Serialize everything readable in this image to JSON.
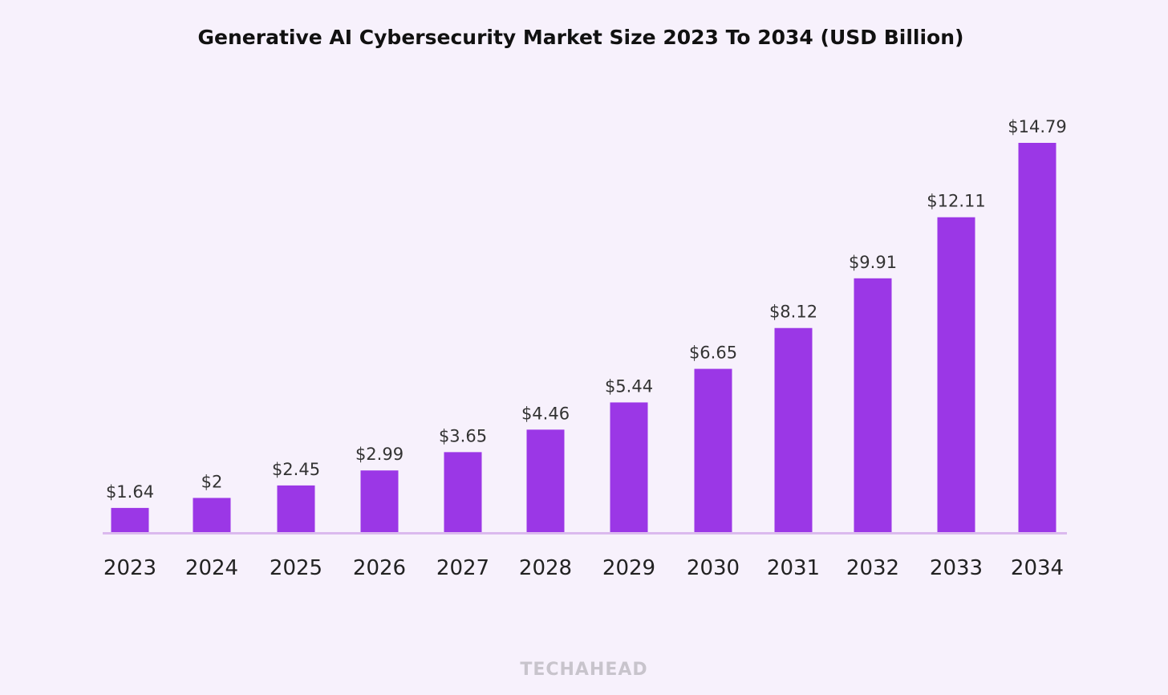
{
  "chart_data": {
    "type": "bar",
    "title": "Generative AI Cybersecurity Market Size 2023 To 2034 (USD Billion)",
    "categories": [
      "2023",
      "2024",
      "2025",
      "2026",
      "2027",
      "2028",
      "2029",
      "2030",
      "2031",
      "2032",
      "2033",
      "2034"
    ],
    "values": [
      1.64,
      2,
      2.45,
      2.99,
      3.65,
      4.46,
      5.44,
      6.65,
      8.12,
      9.91,
      12.11,
      14.79
    ],
    "data_labels": [
      "$1.64",
      "$2",
      "$2.45",
      "$2.99",
      "$3.65",
      "$4.46",
      "$5.44",
      "$6.65",
      "$8.12",
      "$9.91",
      "$12.11",
      "$14.79"
    ],
    "xlabel": "",
    "ylabel": "",
    "ylim": [
      0.77,
      14.79
    ],
    "grid": false,
    "bar_color": "#9b37e6",
    "axis_color": "#dbb9ee"
  },
  "watermark": "TECHAHEAD"
}
